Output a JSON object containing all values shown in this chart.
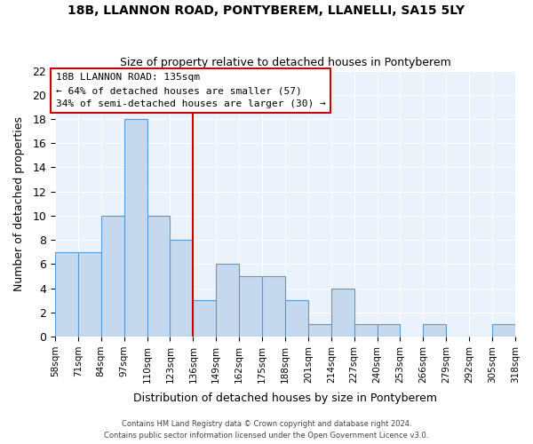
{
  "title1": "18B, LLANNON ROAD, PONTYBEREM, LLANELLI, SA15 5LY",
  "title2": "Size of property relative to detached houses in Pontyberem",
  "xlabel": "Distribution of detached houses by size in Pontyberem",
  "ylabel": "Number of detached properties",
  "bin_edges": [
    58,
    71,
    84,
    97,
    110,
    123,
    136,
    149,
    162,
    175,
    188,
    201,
    214,
    227,
    240,
    253,
    266,
    279,
    292,
    305,
    318
  ],
  "bin_labels": [
    "58sqm",
    "71sqm",
    "84sqm",
    "97sqm",
    "110sqm",
    "123sqm",
    "136sqm",
    "149sqm",
    "162sqm",
    "175sqm",
    "188sqm",
    "201sqm",
    "214sqm",
    "227sqm",
    "240sqm",
    "253sqm",
    "266sqm",
    "279sqm",
    "292sqm",
    "305sqm",
    "318sqm"
  ],
  "counts": [
    7,
    7,
    10,
    18,
    10,
    8,
    3,
    6,
    5,
    5,
    3,
    1,
    4,
    1,
    1,
    0,
    1,
    0,
    0,
    1
  ],
  "bar_color": "#c5d8ed",
  "bar_edge_color": "#5b9bd5",
  "vline_x": 136,
  "vline_color": "#cc0000",
  "annotation_title": "18B LLANNON ROAD: 135sqm",
  "annotation_line1": "← 64% of detached houses are smaller (57)",
  "annotation_line2": "34% of semi-detached houses are larger (30) →",
  "annotation_box_color": "#ffffff",
  "annotation_box_edge": "#cc0000",
  "ylim": [
    0,
    22
  ],
  "yticks": [
    0,
    2,
    4,
    6,
    8,
    10,
    12,
    14,
    16,
    18,
    20,
    22
  ],
  "footer1": "Contains HM Land Registry data © Crown copyright and database right 2024.",
  "footer2": "Contains public sector information licensed under the Open Government Licence v3.0.",
  "bg_color": "#eaf2fb",
  "fig_bg_color": "#ffffff"
}
